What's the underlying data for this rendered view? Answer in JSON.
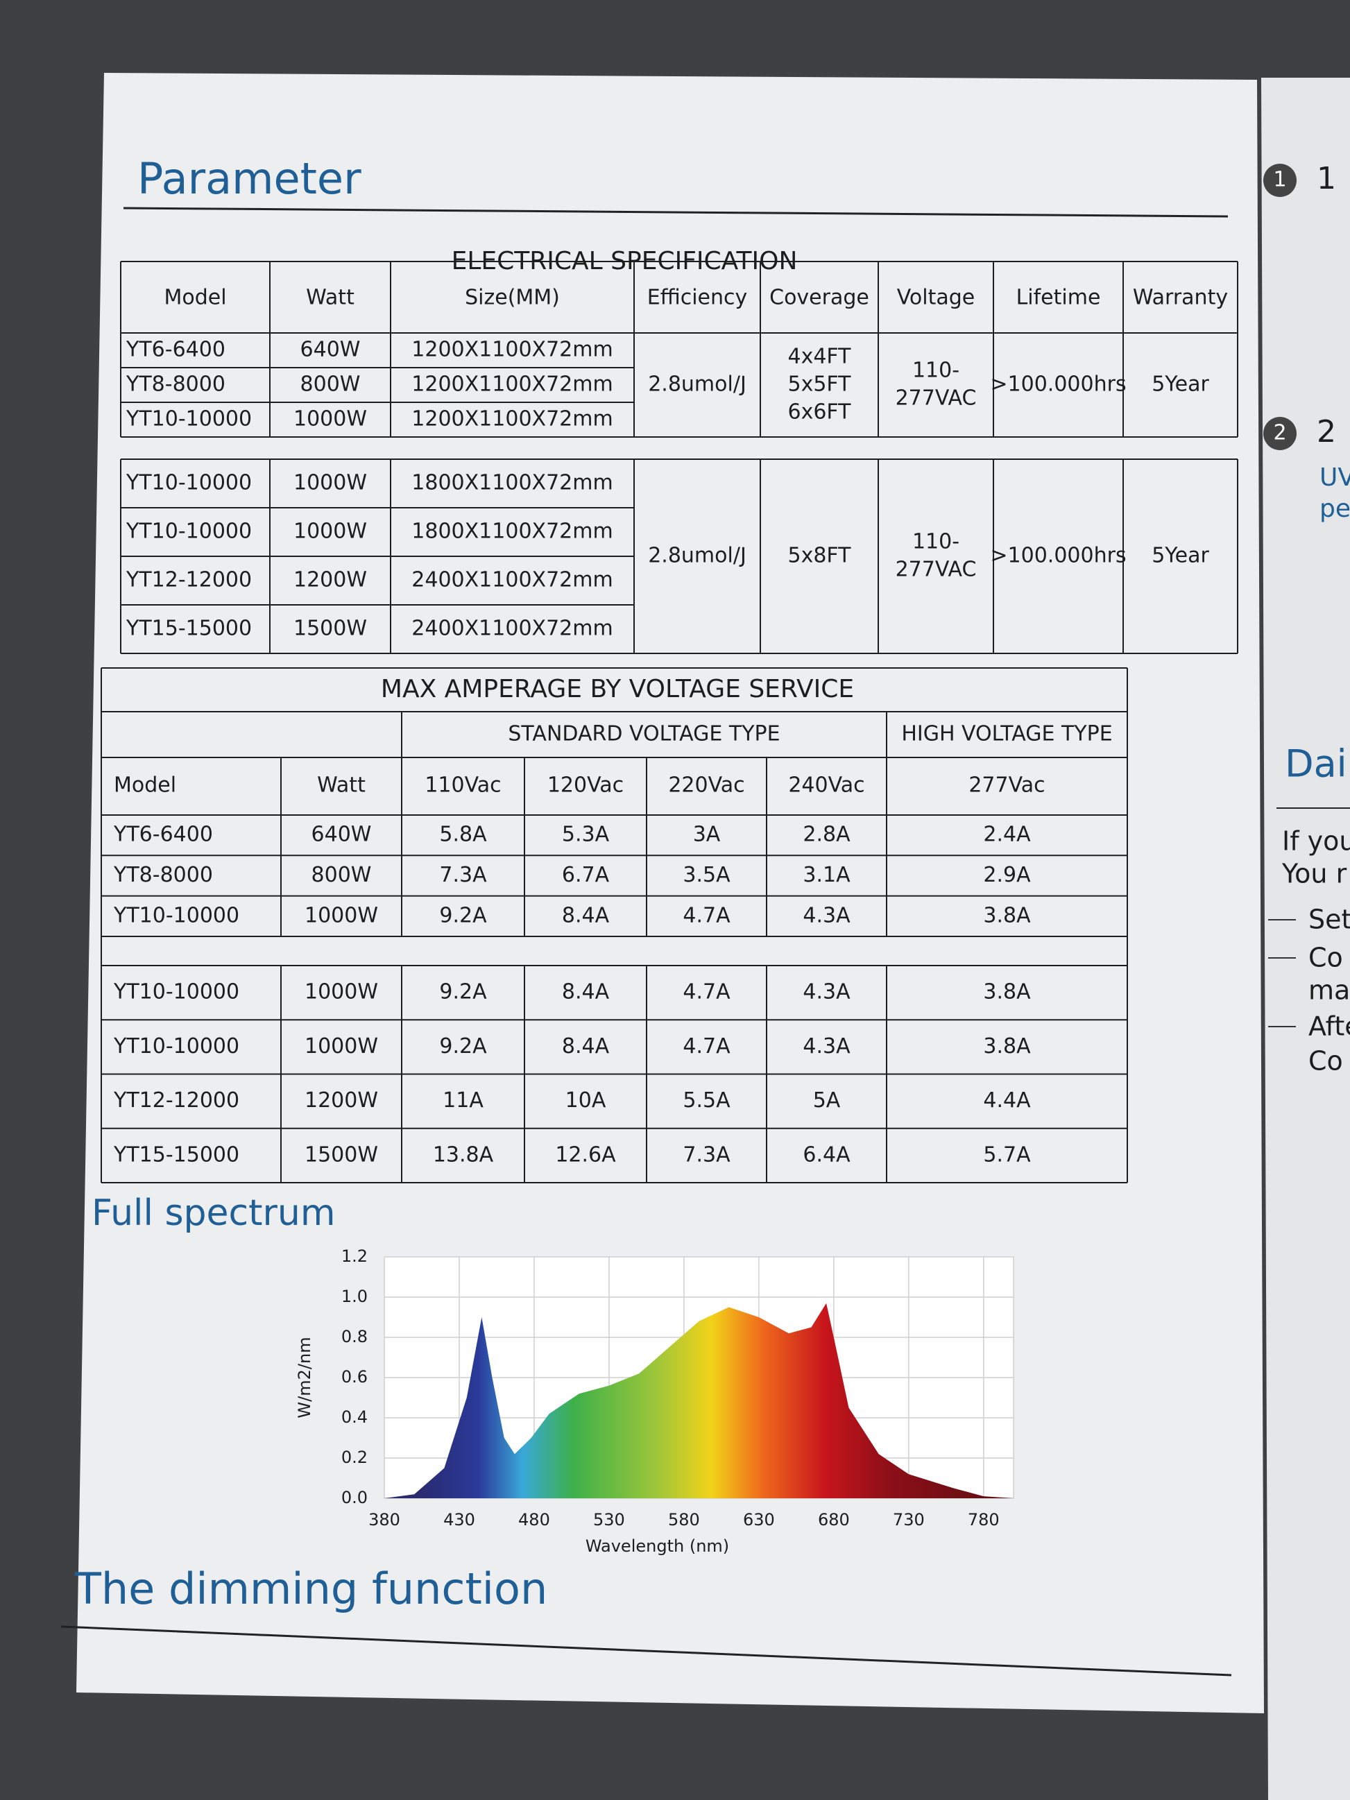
{
  "header": {
    "title": "Parameter"
  },
  "electrical": {
    "title": "ELECTRICAL SPECIFICATION",
    "columns": [
      "Model",
      "Watt",
      "Size(MM)",
      "Efficiency",
      "Coverage",
      "Voltage",
      "Lifetime",
      "Warranty"
    ],
    "groups": [
      {
        "rows": [
          [
            "YT6-6400",
            "640W",
            "1200X1100X72mm"
          ],
          [
            "YT8-8000",
            "800W",
            "1200X1100X72mm"
          ],
          [
            "YT10-10000",
            "1000W",
            "1200X1100X72mm"
          ]
        ],
        "efficiency": "2.8umol/J",
        "coverage": [
          "4x4FT",
          "5x5FT",
          "6x6FT"
        ],
        "voltage": [
          "110-",
          "277VAC"
        ],
        "lifetime": ">100.000hrs",
        "warranty": "5Year"
      },
      {
        "rows": [
          [
            "YT10-10000",
            "1000W",
            "1800X1100X72mm"
          ],
          [
            "YT10-10000",
            "1000W",
            "1800X1100X72mm"
          ],
          [
            "YT12-12000",
            "1200W",
            "2400X1100X72mm"
          ],
          [
            "YT15-15000",
            "1500W",
            "2400X1100X72mm"
          ]
        ],
        "efficiency": "2.8umol/J",
        "coverage": [
          "5x8FT"
        ],
        "voltage": [
          "110-",
          "277VAC"
        ],
        "lifetime": ">100.000hrs",
        "warranty": "5Year"
      }
    ]
  },
  "amperage": {
    "title": "MAX AMPERAGE BY VOLTAGE SERVICE",
    "standard": "STANDARD VOLTAGE TYPE",
    "high": "HIGH VOLTAGE TYPE",
    "columns": [
      "Model",
      "Watt",
      "110Vac",
      "120Vac",
      "220Vac",
      "240Vac",
      "277Vac"
    ],
    "groups": [
      [
        [
          "YT6-6400",
          "640W",
          "5.8A",
          "5.3A",
          "3A",
          "2.8A",
          "2.4A"
        ],
        [
          "YT8-8000",
          "800W",
          "7.3A",
          "6.7A",
          "3.5A",
          "3.1A",
          "2.9A"
        ],
        [
          "YT10-10000",
          "1000W",
          "9.2A",
          "8.4A",
          "4.7A",
          "4.3A",
          "3.8A"
        ]
      ],
      [
        [
          "YT10-10000",
          "1000W",
          "9.2A",
          "8.4A",
          "4.7A",
          "4.3A",
          "3.8A"
        ],
        [
          "YT10-10000",
          "1000W",
          "9.2A",
          "8.4A",
          "4.7A",
          "4.3A",
          "3.8A"
        ],
        [
          "YT12-12000",
          "1200W",
          "11A",
          "10A",
          "5.5A",
          "5A",
          "4.4A"
        ],
        [
          "YT15-15000",
          "1500W",
          "13.8A",
          "12.6A",
          "7.3A",
          "6.4A",
          "5.7A"
        ]
      ]
    ]
  },
  "spectrum": {
    "title": "Full spectrum",
    "y_label": "W/m2/nm",
    "x_label": "Wavelength (nm)",
    "xlim": [
      380,
      800
    ],
    "ylim": [
      0,
      1.2
    ],
    "xticks": [
      380,
      430,
      480,
      530,
      580,
      630,
      680,
      730,
      780
    ],
    "yticks": [
      {
        "value": 0,
        "label": "0.0"
      },
      0.2,
      0.4,
      0.6,
      0.8,
      {
        "value": 1,
        "label": "1.0"
      },
      1.2
    ],
    "x": [
      380,
      400,
      420,
      435,
      445,
      452,
      460,
      467,
      478,
      490,
      510,
      530,
      550,
      570,
      590,
      610,
      630,
      650,
      665,
      675,
      680,
      690,
      710,
      730,
      760,
      780,
      800
    ],
    "values": [
      0,
      0.02,
      0.15,
      0.5,
      0.9,
      0.6,
      0.3,
      0.22,
      0.3,
      0.42,
      0.52,
      0.56,
      0.62,
      0.75,
      0.88,
      0.95,
      0.9,
      0.82,
      0.85,
      0.97,
      0.8,
      0.45,
      0.22,
      0.12,
      0.05,
      0.01,
      0
    ]
  },
  "dimming": {
    "title": "The dimming function"
  },
  "side_page": {
    "steps": [
      {
        "badge": "1",
        "text": "1"
      },
      {
        "badge": "2",
        "text": "2"
      }
    ],
    "step_lines": [
      "UV",
      "pe"
    ],
    "heading": "Dai",
    "intro": [
      "If you",
      "You r"
    ],
    "bullets": [
      "Set",
      "Co",
      "ma",
      "Afte",
      "Co"
    ]
  }
}
